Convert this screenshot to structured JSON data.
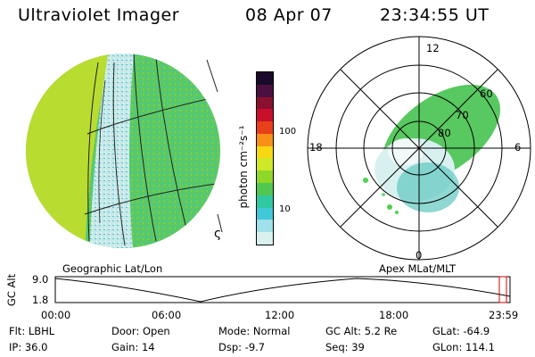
{
  "header": {
    "title": "Ultraviolet Imager",
    "date": "08 Apr 07",
    "time": "23:34:55 UT"
  },
  "geo_panel": {
    "caption": "Geographic Lat/Lon",
    "sun_symbol": "ς"
  },
  "colorbar": {
    "unit_label": "photon cm⁻²s⁻¹",
    "ticks": [
      "100",
      "10"
    ],
    "colors": [
      "#1a0a2a",
      "#4a1040",
      "#8a1030",
      "#c8102a",
      "#e8401a",
      "#f89018",
      "#f8d810",
      "#d0e828",
      "#90d828",
      "#50c850",
      "#30c8a0",
      "#40c8d8",
      "#a0e0e8",
      "#d8f0f0"
    ]
  },
  "polar_panel": {
    "caption": "Apex MLat/MLT",
    "mlt_labels": [
      "12",
      "18",
      "6",
      "0"
    ],
    "mlat_labels": [
      "60",
      "70",
      "80"
    ]
  },
  "timeline": {
    "y_label": "GC Alt",
    "y_max": "9.0",
    "y_min": "1.8",
    "x_ticks": [
      "00:00",
      "06:00",
      "12:00",
      "18:00",
      "23:59"
    ]
  },
  "status": {
    "filter": "Flt: LBHL",
    "ip": "IP: 36.0",
    "door": "Door: Open",
    "gain": "Gain: 14",
    "mode": "Mode: Normal",
    "dsp": "Dsp:    -9.7",
    "gc_alt": "GC Alt: 5.2 Re",
    "seq": "Seq: 39",
    "glat": "GLat: -64.9",
    "glon": "GLon: 114.1"
  }
}
